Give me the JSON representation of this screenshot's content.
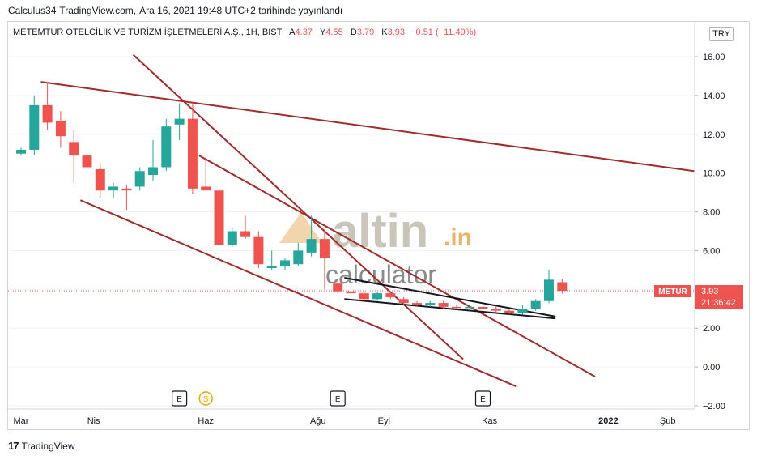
{
  "header": {
    "author": "Calculus34",
    "site": "TradingView.com,",
    "published": "Ara 16, 2021 19:48 UTC+2 tarihinde yayınlandı"
  },
  "legend": {
    "symbol": "METEMTUR OTELCİLİK VE TURİZM İŞLETMELERİ A.Ş., 1H, BIST",
    "open_label": "A",
    "open": "4.37",
    "high_label": "Y",
    "high": "4.55",
    "low_label": "D",
    "low": "3.79",
    "close_label": "K",
    "close": "3.93",
    "change": "−0.51 (−11.49%)"
  },
  "currency": "TRY",
  "price_tag": {
    "symbol": "METUR",
    "price": "3.93",
    "countdown": "21:36:42"
  },
  "footer": {
    "brand": "TradingView"
  },
  "watermark": {
    "word1": "altin",
    "word2": ".in",
    "word3": "calculator"
  },
  "colors": {
    "up": "#26a69a",
    "down": "#ef5350",
    "trendline": "#a52a2a",
    "support": "#131722"
  },
  "chart_data": {
    "type": "candlestick",
    "y_axis": {
      "ticks": [
        "16.00",
        "14.00",
        "12.00",
        "10.00",
        "8.00",
        "6.00",
        "4.00",
        "2.00",
        "0.00",
        "−2.00"
      ],
      "range": [
        -2.3,
        17.5
      ],
      "position": "right"
    },
    "x_axis": {
      "labels": [
        "Mar",
        "Nis",
        "Haz",
        "Ağu",
        "Eyl",
        "Kas",
        "2022",
        "Şub"
      ],
      "label_index": [
        0,
        5.5,
        14,
        22.5,
        27.5,
        35.5,
        44.5,
        49
      ]
    },
    "events": [
      {
        "type": "E",
        "index": 12
      },
      {
        "type": "S",
        "index": 14
      },
      {
        "type": "E",
        "index": 24
      },
      {
        "type": "E",
        "index": 35
      }
    ],
    "candles": [
      {
        "o": 11.0,
        "h": 11.3,
        "l": 10.9,
        "c": 11.2
      },
      {
        "o": 11.2,
        "h": 14.0,
        "l": 10.9,
        "c": 13.5
      },
      {
        "o": 13.5,
        "h": 14.7,
        "l": 12.2,
        "c": 12.6
      },
      {
        "o": 12.7,
        "h": 13.2,
        "l": 11.3,
        "c": 11.9
      },
      {
        "o": 11.6,
        "h": 12.2,
        "l": 9.5,
        "c": 10.9
      },
      {
        "o": 10.9,
        "h": 11.2,
        "l": 8.8,
        "c": 10.3
      },
      {
        "o": 10.2,
        "h": 10.5,
        "l": 8.7,
        "c": 9.1
      },
      {
        "o": 9.1,
        "h": 9.5,
        "l": 8.7,
        "c": 9.3
      },
      {
        "o": 9.2,
        "h": 9.4,
        "l": 8.1,
        "c": 9.1
      },
      {
        "o": 9.3,
        "h": 10.3,
        "l": 9.1,
        "c": 10.1
      },
      {
        "o": 9.9,
        "h": 11.7,
        "l": 9.6,
        "c": 10.3
      },
      {
        "o": 10.3,
        "h": 12.8,
        "l": 10.1,
        "c": 12.4
      },
      {
        "o": 12.5,
        "h": 13.6,
        "l": 11.7,
        "c": 12.8
      },
      {
        "o": 12.8,
        "h": 13.6,
        "l": 8.9,
        "c": 9.2
      },
      {
        "o": 9.3,
        "h": 10.8,
        "l": 9.1,
        "c": 9.1
      },
      {
        "o": 9.1,
        "h": 9.3,
        "l": 5.8,
        "c": 6.3
      },
      {
        "o": 6.3,
        "h": 7.2,
        "l": 6.2,
        "c": 7.0
      },
      {
        "o": 7.0,
        "h": 7.8,
        "l": 6.6,
        "c": 6.7
      },
      {
        "o": 6.7,
        "h": 7.0,
        "l": 5.1,
        "c": 5.3
      },
      {
        "o": 5.1,
        "h": 6.0,
        "l": 5.0,
        "c": 5.2
      },
      {
        "o": 5.2,
        "h": 5.6,
        "l": 5.0,
        "c": 5.5
      },
      {
        "o": 5.3,
        "h": 6.4,
        "l": 5.2,
        "c": 6.0
      },
      {
        "o": 5.9,
        "h": 7.8,
        "l": 5.7,
        "c": 6.6
      },
      {
        "o": 6.6,
        "h": 7.1,
        "l": 4.0,
        "c": 5.6
      },
      {
        "o": 4.3,
        "h": 4.5,
        "l": 3.8,
        "c": 3.9
      },
      {
        "o": 3.9,
        "h": 4.1,
        "l": 3.7,
        "c": 3.8
      },
      {
        "o": 3.8,
        "h": 3.9,
        "l": 3.4,
        "c": 3.5
      },
      {
        "o": 3.5,
        "h": 3.9,
        "l": 3.4,
        "c": 3.8
      },
      {
        "o": 3.8,
        "h": 3.9,
        "l": 3.5,
        "c": 3.6
      },
      {
        "o": 3.5,
        "h": 3.6,
        "l": 3.2,
        "c": 3.3
      },
      {
        "o": 3.3,
        "h": 3.4,
        "l": 3.1,
        "c": 3.2
      },
      {
        "o": 3.2,
        "h": 3.4,
        "l": 3.1,
        "c": 3.3
      },
      {
        "o": 3.3,
        "h": 3.4,
        "l": 3.0,
        "c": 3.1
      },
      {
        "o": 3.1,
        "h": 3.2,
        "l": 3.0,
        "c": 3.05
      },
      {
        "o": 3.05,
        "h": 3.2,
        "l": 2.95,
        "c": 3.1
      },
      {
        "o": 3.1,
        "h": 3.2,
        "l": 2.9,
        "c": 3.0
      },
      {
        "o": 3.0,
        "h": 3.1,
        "l": 2.8,
        "c": 2.9
      },
      {
        "o": 2.9,
        "h": 3.0,
        "l": 2.7,
        "c": 2.8
      },
      {
        "o": 2.8,
        "h": 3.2,
        "l": 2.7,
        "c": 3.0
      },
      {
        "o": 3.0,
        "h": 3.5,
        "l": 2.9,
        "c": 3.4
      },
      {
        "o": 3.4,
        "h": 5.0,
        "l": 3.3,
        "c": 4.5
      },
      {
        "o": 4.37,
        "h": 4.55,
        "l": 3.79,
        "c": 3.93
      }
    ],
    "trendlines": [
      {
        "x1": 1.5,
        "y1": 14.7,
        "x2": 51,
        "y2": 10.1,
        "color": "trendline"
      },
      {
        "x1": 8.5,
        "y1": 16.1,
        "x2": 33.5,
        "y2": 0.4,
        "color": "trendline"
      },
      {
        "x1": 13.5,
        "y1": 10.9,
        "x2": 43.5,
        "y2": -0.5,
        "color": "trendline"
      },
      {
        "x1": 4.5,
        "y1": 8.6,
        "x2": 37.5,
        "y2": -1.0,
        "color": "trendline"
      },
      {
        "x1": 24.5,
        "y1": 4.6,
        "x2": 40.5,
        "y2": 2.6,
        "color": "support"
      },
      {
        "x1": 24.5,
        "y1": 3.5,
        "x2": 40.5,
        "y2": 2.5,
        "color": "support"
      }
    ]
  }
}
